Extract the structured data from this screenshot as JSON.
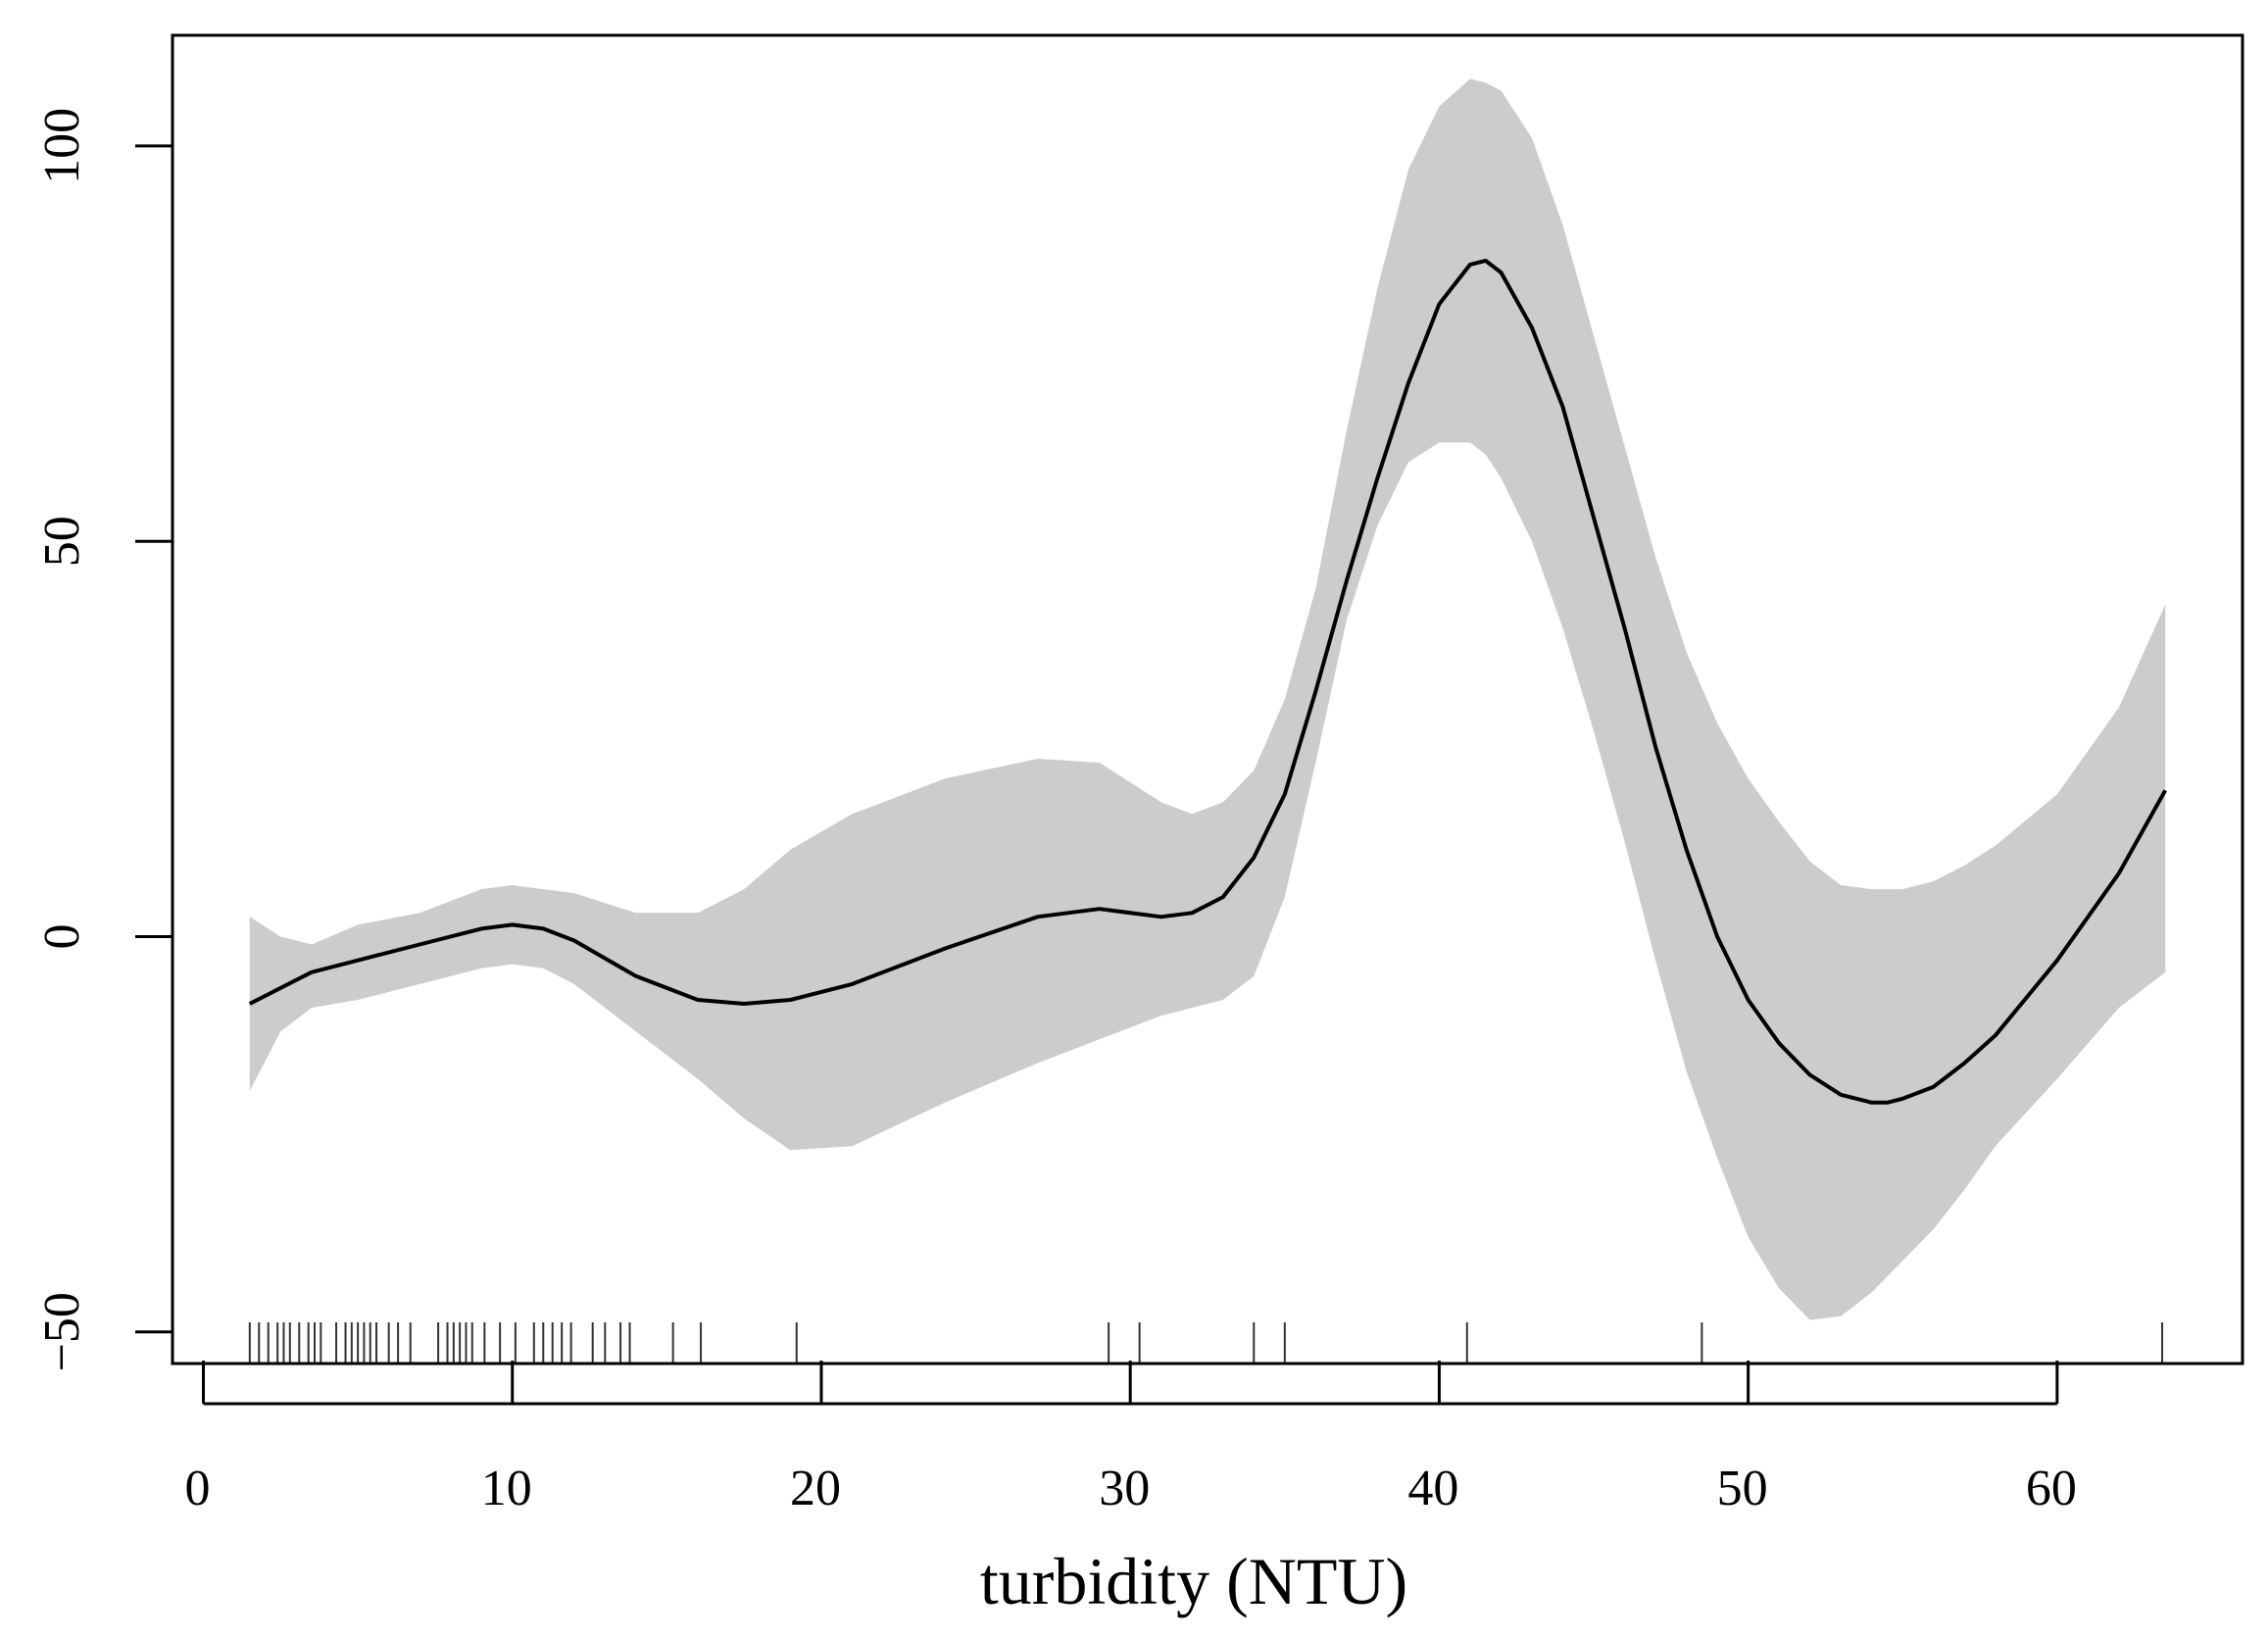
{
  "chart_data": {
    "type": "line",
    "title": "",
    "xlabel": "turbidity (NTU)",
    "ylabel": "",
    "xlim": [
      -1,
      66
    ],
    "ylim": [
      -54,
      114
    ],
    "x_ticks": [
      0,
      10,
      20,
      30,
      40,
      50,
      60
    ],
    "y_ticks": [
      -50,
      0,
      50,
      100
    ],
    "x_tick_labels": [
      "0",
      "10",
      "20",
      "30",
      "40",
      "50",
      "60"
    ],
    "y_tick_labels": [
      "−50",
      "0",
      "50",
      "100"
    ],
    "grid": false,
    "legend": "none",
    "colors": {
      "line": "#000000",
      "band": "#cccccc",
      "rug": "#333333",
      "frame": "#000000"
    },
    "series": [
      {
        "x": [
          1.5,
          2.5,
          3.5,
          5,
          7,
          9,
          10,
          11,
          12,
          14,
          16,
          17.5,
          19,
          21,
          24,
          27,
          29,
          31,
          32,
          33,
          34,
          35,
          36,
          37,
          38,
          39,
          40,
          41,
          41.5,
          42,
          43,
          44,
          45,
          46,
          47,
          48,
          49,
          50,
          51,
          52,
          53,
          54,
          54.5,
          55,
          56,
          57,
          58,
          60,
          62,
          63.5
        ],
        "y": [
          -8.5,
          -6.5,
          -4.5,
          -3,
          -1,
          1,
          1.5,
          1,
          -0.5,
          -5,
          -8,
          -8.5,
          -8,
          -6,
          -1.5,
          2.5,
          3.5,
          2.5,
          3,
          5,
          10,
          18,
          31,
          45,
          58,
          70,
          80,
          85,
          85.5,
          84,
          77,
          67,
          53,
          39,
          24,
          11,
          0,
          -8,
          -13.5,
          -17.5,
          -20,
          -21,
          -21,
          -20.5,
          -19,
          -16,
          -12.5,
          -3,
          8,
          18.5
        ],
        "lower": [
          -19.5,
          -12,
          -9,
          -8,
          -6,
          -4,
          -3.5,
          -4,
          -6,
          -12,
          -18,
          -23,
          -27,
          -26.5,
          -21,
          -16,
          -13,
          -10,
          -9,
          -8,
          -5,
          5,
          22,
          40,
          52,
          60,
          62.5,
          62.5,
          61,
          58,
          50,
          39,
          26,
          12,
          -3,
          -17,
          -28,
          -38,
          -44.5,
          -48.5,
          -48,
          -45,
          -43,
          -41,
          -37,
          -32,
          -26.5,
          -18,
          -9,
          -4.5
        ],
        "upper": [
          2.5,
          0,
          -1,
          1.5,
          3,
          6,
          6.5,
          6,
          5.5,
          3,
          3,
          6,
          11,
          15.5,
          20,
          22.5,
          22,
          17,
          15.5,
          17,
          21,
          30,
          44,
          64,
          82,
          97,
          105,
          108.5,
          108,
          107,
          101,
          90,
          76,
          62,
          48,
          36,
          27,
          20,
          14.5,
          9.5,
          6.5,
          6,
          6,
          6,
          7,
          9,
          11.5,
          18,
          29,
          42
        ]
      }
    ],
    "rug": [
      1.5,
      1.8,
      2.1,
      2.4,
      2.6,
      2.8,
      3.1,
      3.4,
      3.6,
      3.8,
      4.3,
      4.6,
      4.8,
      5.0,
      5.2,
      5.4,
      5.6,
      6.0,
      6.3,
      6.7,
      7.6,
      7.9,
      8.1,
      8.3,
      8.5,
      8.7,
      9.1,
      9.6,
      10.1,
      10.7,
      11.0,
      11.3,
      11.6,
      11.9,
      12.6,
      13.0,
      13.5,
      13.8,
      15.2,
      16.1,
      19.2,
      29.3,
      30.3,
      34.0,
      35.0,
      40.9,
      48.5,
      63.4
    ]
  }
}
